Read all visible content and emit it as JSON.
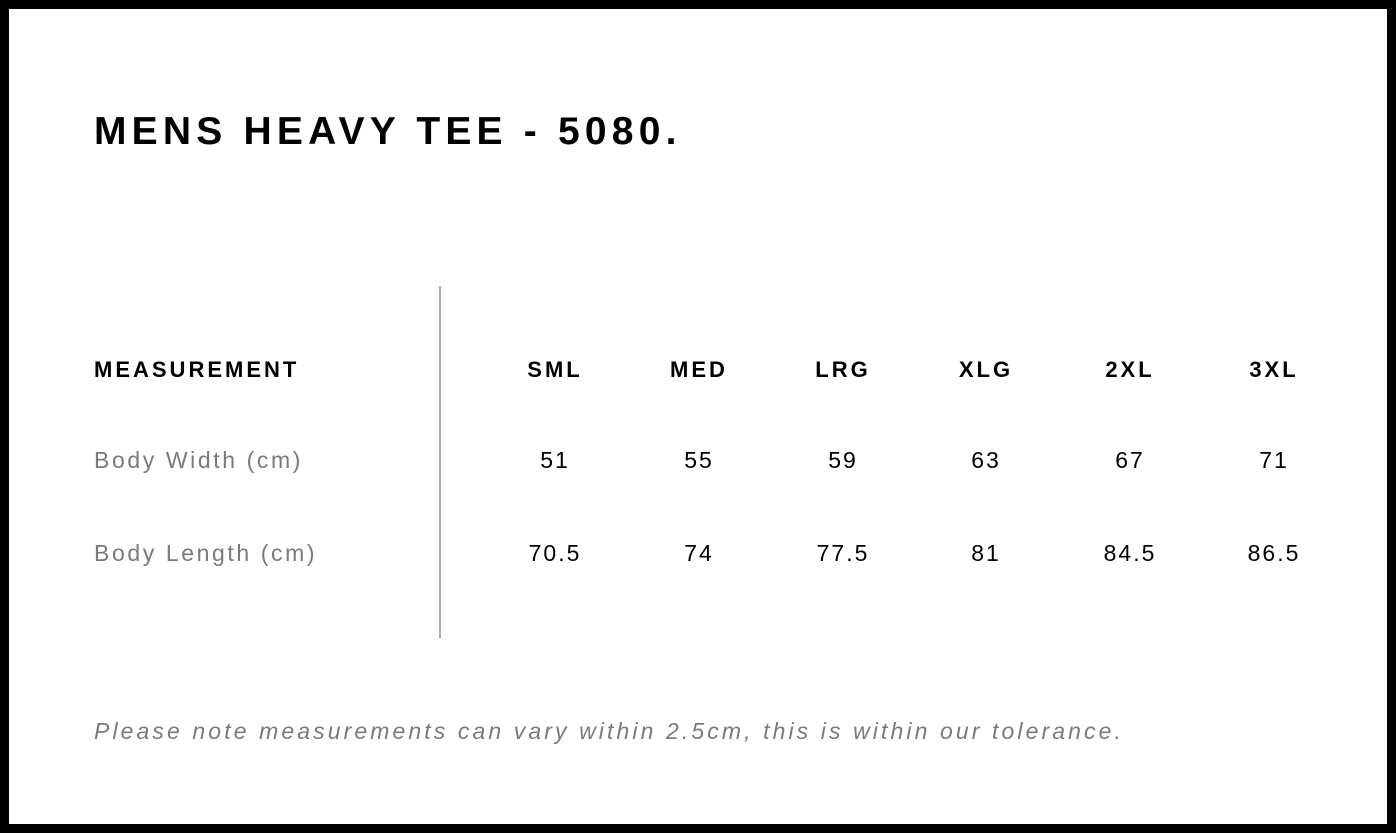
{
  "title": "MENS HEAVY TEE - 5080.",
  "table": {
    "header": "MEASUREMENT",
    "sizes": [
      "SML",
      "MED",
      "LRG",
      "XLG",
      "2XL",
      "3XL"
    ],
    "rows": [
      {
        "label": "Body Width (cm)",
        "values": [
          "51",
          "55",
          "59",
          "63",
          "67",
          "71"
        ]
      },
      {
        "label": "Body Length (cm)",
        "values": [
          "70.5",
          "74",
          "77.5",
          "81",
          "84.5",
          "86.5"
        ]
      }
    ]
  },
  "note": "Please note measurements can vary within 2.5cm, this is within our tolerance.",
  "colors": {
    "frame": "#000000",
    "label_gray": "#7a7a7a",
    "divider": "#aaaaaa"
  }
}
